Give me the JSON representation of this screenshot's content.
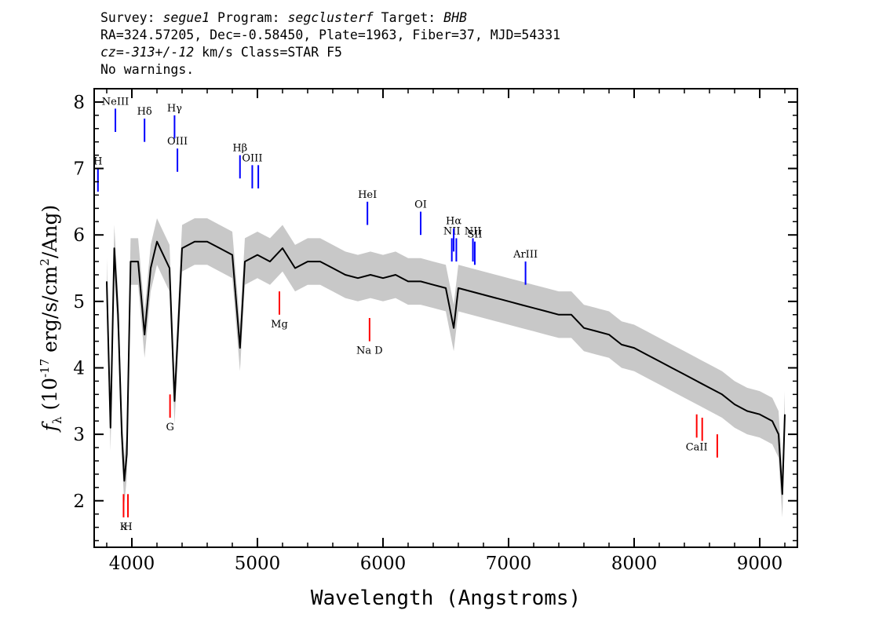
{
  "header": {
    "survey_label": "Survey:",
    "survey": "segue1",
    "program_label": "Program:",
    "program": "segclusterf",
    "target_label": "Target:",
    "target": "BHB",
    "line2": "RA=324.57205, Dec=-0.58450, Plate=1963, Fiber=37, MJD=54331",
    "cz_prefix": "cz=",
    "cz_value": "-313+/-12",
    "cz_suffix": " km/s Class=STAR F5",
    "line4": "No warnings."
  },
  "chart_data": {
    "type": "line",
    "title": "",
    "xlabel": "Wavelength (Angstroms)",
    "ylabel_prefix": "f",
    "ylabel_sub": "λ",
    "ylabel_open": " (10",
    "ylabel_exp": "-17",
    "ylabel_mid": " erg/s/cm",
    "ylabel_exp2": "2",
    "ylabel_close": "/Ang)",
    "xlim": [
      3700,
      9300
    ],
    "ylim": [
      1.3,
      8.2
    ],
    "xticks": [
      4000,
      5000,
      6000,
      7000,
      8000,
      9000
    ],
    "yticks": [
      2,
      3,
      4,
      5,
      6,
      7,
      8
    ],
    "series": [
      {
        "color": "#000000",
        "x": [
          3800,
          3830,
          3860,
          3890,
          3920,
          3940,
          3960,
          3990,
          4050,
          4101,
          4150,
          4200,
          4250,
          4300,
          4340,
          4400,
          4500,
          4600,
          4700,
          4800,
          4861,
          4900,
          5000,
          5100,
          5200,
          5300,
          5400,
          5500,
          5600,
          5700,
          5800,
          5900,
          6000,
          6100,
          6200,
          6300,
          6400,
          6500,
          6563,
          6600,
          6700,
          6800,
          6900,
          7000,
          7100,
          7200,
          7300,
          7400,
          7500,
          7600,
          7700,
          7800,
          7900,
          8000,
          8100,
          8200,
          8300,
          8400,
          8500,
          8600,
          8700,
          8800,
          8900,
          9000,
          9100,
          9150,
          9180,
          9200
        ],
        "y": [
          5.3,
          3.1,
          5.8,
          4.8,
          3.0,
          2.3,
          2.7,
          5.6,
          5.6,
          4.5,
          5.5,
          5.9,
          5.7,
          5.5,
          3.5,
          5.8,
          5.9,
          5.9,
          5.8,
          5.7,
          4.3,
          5.6,
          5.7,
          5.6,
          5.8,
          5.5,
          5.6,
          5.6,
          5.5,
          5.4,
          5.35,
          5.4,
          5.35,
          5.4,
          5.3,
          5.3,
          5.25,
          5.2,
          4.6,
          5.2,
          5.15,
          5.1,
          5.05,
          5.0,
          4.95,
          4.9,
          4.85,
          4.8,
          4.8,
          4.6,
          4.55,
          4.5,
          4.35,
          4.3,
          4.2,
          4.1,
          4.0,
          3.9,
          3.8,
          3.7,
          3.6,
          3.45,
          3.35,
          3.3,
          3.2,
          3.0,
          2.1,
          3.3
        ]
      }
    ],
    "error_band": {
      "color": "#c8c8c8",
      "half_width": 0.35
    },
    "emission_lines": [
      {
        "label": "NeIII",
        "x": 3869,
        "y_top": 7.9,
        "y_bottom": 7.55,
        "color": "#0000ff"
      },
      {
        "label": "Hδ",
        "x": 4101,
        "y_top": 7.75,
        "y_bottom": 7.4,
        "color": "#0000ff"
      },
      {
        "label": "Hγ",
        "x": 4340,
        "y_top": 7.8,
        "y_bottom": 7.45,
        "color": "#0000ff"
      },
      {
        "label": "OIII",
        "x": 4363,
        "y_top": 7.3,
        "y_bottom": 6.95,
        "color": "#0000ff"
      },
      {
        "label": "Hβ",
        "x": 4861,
        "y_top": 7.2,
        "y_bottom": 6.85,
        "color": "#0000ff"
      },
      {
        "label": "OIII",
        "x": 4959,
        "y_top": 7.05,
        "y_bottom": 6.7,
        "color": "#0000ff"
      },
      {
        "label": "",
        "x": 5007,
        "y_top": 7.05,
        "y_bottom": 6.7,
        "color": "#0000ff"
      },
      {
        "label": "HeI",
        "x": 5876,
        "y_top": 6.5,
        "y_bottom": 6.15,
        "color": "#0000ff"
      },
      {
        "label": "OI",
        "x": 6300,
        "y_top": 6.35,
        "y_bottom": 6.0,
        "color": "#0000ff"
      },
      {
        "label": "NII",
        "x": 6548,
        "y_top": 5.95,
        "y_bottom": 5.6,
        "color": "#0000ff"
      },
      {
        "label": "Hα",
        "x": 6563,
        "y_top": 6.1,
        "y_bottom": 5.75,
        "color": "#0000ff"
      },
      {
        "label": "",
        "x": 6584,
        "y_top": 5.95,
        "y_bottom": 5.6,
        "color": "#0000ff"
      },
      {
        "label": "NII",
        "x": 6716,
        "y_top": 5.95,
        "y_bottom": 5.6,
        "color": "#0000ff"
      },
      {
        "label": "SII",
        "x": 6731,
        "y_top": 5.9,
        "y_bottom": 5.55,
        "color": "#0000ff"
      },
      {
        "label": "ArIII",
        "x": 7135,
        "y_top": 5.6,
        "y_bottom": 5.25,
        "color": "#0000ff"
      },
      {
        "label": "H",
        "x": 3730,
        "y_top": 7.0,
        "y_bottom": 6.65,
        "color": "#0000ff"
      }
    ],
    "absorption_lines": [
      {
        "label": "Mg",
        "x": 5175,
        "y_top": 5.15,
        "y_bottom": 4.8,
        "color": "#ff0000"
      },
      {
        "label": "Na D",
        "x": 5893,
        "y_top": 4.75,
        "y_bottom": 4.4,
        "color": "#ff0000"
      },
      {
        "label": "G",
        "x": 4304,
        "y_top": 3.6,
        "y_bottom": 3.25,
        "color": "#ff0000"
      },
      {
        "label": "K",
        "x": 3934,
        "y_top": 2.1,
        "y_bottom": 1.75,
        "color": "#ff0000"
      },
      {
        "label": "H",
        "x": 3969,
        "y_top": 2.1,
        "y_bottom": 1.75,
        "color": "#ff0000"
      },
      {
        "label": "CaII",
        "x": 8498,
        "y_top": 3.3,
        "y_bottom": 2.95,
        "color": "#ff0000"
      },
      {
        "label": "",
        "x": 8542,
        "y_top": 3.25,
        "y_bottom": 2.9,
        "color": "#ff0000"
      },
      {
        "label": "",
        "x": 8662,
        "y_top": 3.0,
        "y_bottom": 2.65,
        "color": "#ff0000"
      }
    ]
  }
}
